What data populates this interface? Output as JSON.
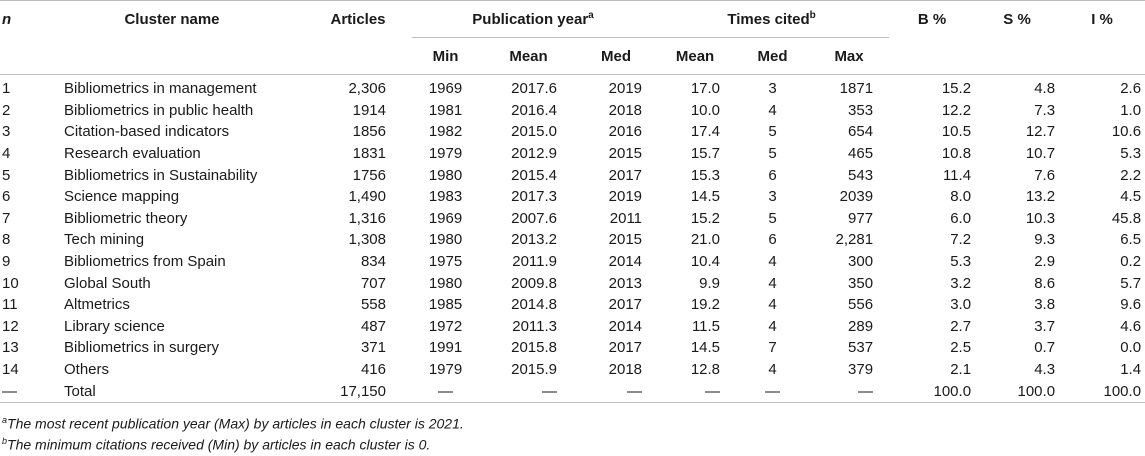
{
  "header": {
    "n": "n",
    "cluster_name": "Cluster name",
    "articles": "Articles",
    "publication_year": "Publication year",
    "publication_year_sup": "a",
    "times_cited": "Times cited",
    "times_cited_sup": "b",
    "b_pct": "B %",
    "s_pct": "S %",
    "i_pct": "I %",
    "sub": {
      "min": "Min",
      "mean": "Mean",
      "med": "Med",
      "tc_mean": "Mean",
      "tc_med": "Med",
      "tc_max": "Max"
    }
  },
  "rows": [
    {
      "n": "1",
      "name": "Bibliometrics in management",
      "articles": "2,306",
      "py_min": "1969",
      "py_mean": "2017.6",
      "py_med": "2019",
      "tc_mean": "17.0",
      "tc_med": "3",
      "tc_max": "1871",
      "b": "15.2",
      "s": "4.8",
      "i": "2.6"
    },
    {
      "n": "2",
      "name": "Bibliometrics in public health",
      "articles": "1914",
      "py_min": "1981",
      "py_mean": "2016.4",
      "py_med": "2018",
      "tc_mean": "10.0",
      "tc_med": "4",
      "tc_max": "353",
      "b": "12.2",
      "s": "7.3",
      "i": "1.0"
    },
    {
      "n": "3",
      "name": "Citation-based indicators",
      "articles": "1856",
      "py_min": "1982",
      "py_mean": "2015.0",
      "py_med": "2016",
      "tc_mean": "17.4",
      "tc_med": "5",
      "tc_max": "654",
      "b": "10.5",
      "s": "12.7",
      "i": "10.6"
    },
    {
      "n": "4",
      "name": "Research evaluation",
      "articles": "1831",
      "py_min": "1979",
      "py_mean": "2012.9",
      "py_med": "2015",
      "tc_mean": "15.7",
      "tc_med": "5",
      "tc_max": "465",
      "b": "10.8",
      "s": "10.7",
      "i": "5.3"
    },
    {
      "n": "5",
      "name": "Bibliometrics in Sustainability",
      "articles": "1756",
      "py_min": "1980",
      "py_mean": "2015.4",
      "py_med": "2017",
      "tc_mean": "15.3",
      "tc_med": "6",
      "tc_max": "543",
      "b": "11.4",
      "s": "7.6",
      "i": "2.2"
    },
    {
      "n": "6",
      "name": "Science mapping",
      "articles": "1,490",
      "py_min": "1983",
      "py_mean": "2017.3",
      "py_med": "2019",
      "tc_mean": "14.5",
      "tc_med": "3",
      "tc_max": "2039",
      "b": "8.0",
      "s": "13.2",
      "i": "4.5"
    },
    {
      "n": "7",
      "name": "Bibliometric theory",
      "articles": "1,316",
      "py_min": "1969",
      "py_mean": "2007.6",
      "py_med": "2011",
      "tc_mean": "15.2",
      "tc_med": "5",
      "tc_max": "977",
      "b": "6.0",
      "s": "10.3",
      "i": "45.8"
    },
    {
      "n": "8",
      "name": "Tech mining",
      "articles": "1,308",
      "py_min": "1980",
      "py_mean": "2013.2",
      "py_med": "2015",
      "tc_mean": "21.0",
      "tc_med": "6",
      "tc_max": "2,281",
      "b": "7.2",
      "s": "9.3",
      "i": "6.5"
    },
    {
      "n": "9",
      "name": "Bibliometrics from Spain",
      "articles": "834",
      "py_min": "1975",
      "py_mean": "2011.9",
      "py_med": "2014",
      "tc_mean": "10.4",
      "tc_med": "4",
      "tc_max": "300",
      "b": "5.3",
      "s": "2.9",
      "i": "0.2"
    },
    {
      "n": "10",
      "name": "Global South",
      "articles": "707",
      "py_min": "1980",
      "py_mean": "2009.8",
      "py_med": "2013",
      "tc_mean": "9.9",
      "tc_med": "4",
      "tc_max": "350",
      "b": "3.2",
      "s": "8.6",
      "i": "5.7"
    },
    {
      "n": "11",
      "name": "Altmetrics",
      "articles": "558",
      "py_min": "1985",
      "py_mean": "2014.8",
      "py_med": "2017",
      "tc_mean": "19.2",
      "tc_med": "4",
      "tc_max": "556",
      "b": "3.0",
      "s": "3.8",
      "i": "9.6"
    },
    {
      "n": "12",
      "name": "Library science",
      "articles": "487",
      "py_min": "1972",
      "py_mean": "2011.3",
      "py_med": "2014",
      "tc_mean": "11.5",
      "tc_med": "4",
      "tc_max": "289",
      "b": "2.7",
      "s": "3.7",
      "i": "4.6"
    },
    {
      "n": "13",
      "name": "Bibliometrics in surgery",
      "articles": "371",
      "py_min": "1991",
      "py_mean": "2015.8",
      "py_med": "2017",
      "tc_mean": "14.5",
      "tc_med": "7",
      "tc_max": "537",
      "b": "2.5",
      "s": "0.7",
      "i": "0.0"
    },
    {
      "n": "14",
      "name": "Others",
      "articles": "416",
      "py_min": "1979",
      "py_mean": "2015.9",
      "py_med": "2018",
      "tc_mean": "12.8",
      "tc_med": "4",
      "tc_max": "379",
      "b": "2.1",
      "s": "4.3",
      "i": "1.4"
    },
    {
      "n": "—",
      "name": "Total",
      "articles": "17,150",
      "py_min": "—",
      "py_mean": "—",
      "py_med": "—",
      "tc_mean": "—",
      "tc_med": "—",
      "tc_max": "—",
      "b": "100.0",
      "s": "100.0",
      "i": "100.0"
    }
  ],
  "footnotes": [
    {
      "mark": "a",
      "text": "The most recent publication year (Max) by articles in each cluster is 2021."
    },
    {
      "mark": "b",
      "text": "The minimum citations received (Min) by articles in each cluster is 0."
    }
  ]
}
